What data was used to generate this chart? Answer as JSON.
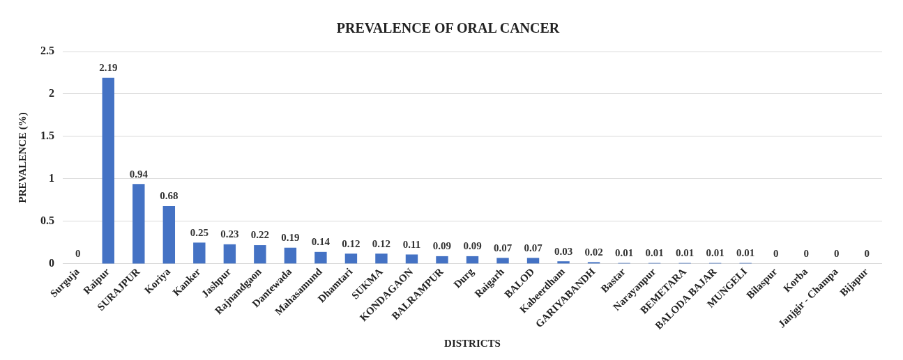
{
  "chart_data": {
    "type": "bar",
    "title": "PREVALENCE OF ORAL CANCER",
    "xlabel": "DISTRICTS",
    "ylabel": "PREVALENCE (%)",
    "categories": [
      "Surguja",
      "Raipur",
      "SURAJPUR",
      "Koriya",
      "Kanker",
      "Jashpur",
      "Rajnandgaon",
      "Dantewada",
      "Mahasamund",
      "Dhamtari",
      "SUKMA",
      "KONDAGAON",
      "BALRAMPUR",
      "Durg",
      "Raigarh",
      "BALOD",
      "Kabeerdham",
      "GARIYABANDH",
      "Bastar",
      "Narayanpur",
      "BEMETARA",
      "BALODA BAJAR",
      "MUNGELI",
      "Bilaspur",
      "Korba",
      "Janjgir - Champa",
      "Bijapur"
    ],
    "values": [
      0,
      2.19,
      0.94,
      0.68,
      0.25,
      0.23,
      0.22,
      0.19,
      0.14,
      0.12,
      0.12,
      0.11,
      0.09,
      0.09,
      0.07,
      0.07,
      0.03,
      0.02,
      0.01,
      0.01,
      0.01,
      0.01,
      0.01,
      0,
      0,
      0,
      0
    ],
    "color": "#4472c4",
    "ylim": [
      0,
      2.5
    ],
    "yticks": [
      0,
      0.5,
      1,
      1.5,
      2,
      2.5
    ],
    "grid": "y",
    "legend": false,
    "data_labels": true
  }
}
